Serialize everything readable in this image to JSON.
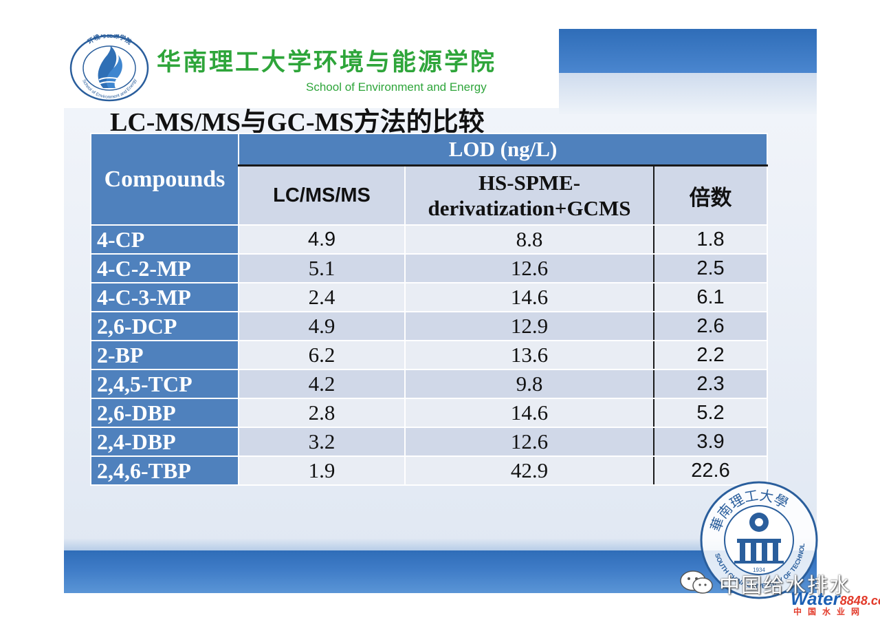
{
  "header": {
    "school_name_cn": "华南理工大学环境与能源学院",
    "school_name_en": "School of Environment and Energy",
    "logo_ring_text": "环境与能源学院",
    "logo_ring_text_en": "School of Environment and Energy"
  },
  "slide": {
    "title": "LC-MS/MS与GC-MS方法的比较"
  },
  "table": {
    "compounds_header": "Compounds",
    "lod_header": "LOD (ng/L)",
    "col_lcmsms": "LC/MS/MS",
    "col_hsspme": "HS-SPME-derivatization+GCMS",
    "col_ratio": "倍数",
    "rows": [
      {
        "compound": "4-CP",
        "lcmsms": "4.9",
        "hsspme": "8.8",
        "ratio": "1.8"
      },
      {
        "compound": "4-C-2-MP",
        "lcmsms": "5.1",
        "hsspme": "12.6",
        "ratio": "2.5"
      },
      {
        "compound": "4-C-3-MP",
        "lcmsms": "2.4",
        "hsspme": "14.6",
        "ratio": "6.1"
      },
      {
        "compound": "2,6-DCP",
        "lcmsms": "4.9",
        "hsspme": "12.9",
        "ratio": "2.6"
      },
      {
        "compound": "2-BP",
        "lcmsms": "6.2",
        "hsspme": "13.6",
        "ratio": "2.2"
      },
      {
        "compound": "2,4,5-TCP",
        "lcmsms": "4.2",
        "hsspme": "9.8",
        "ratio": "2.3"
      },
      {
        "compound": "2,6-DBP",
        "lcmsms": "2.8",
        "hsspme": "14.6",
        "ratio": "5.2"
      },
      {
        "compound": "2,4-DBP",
        "lcmsms": "3.2",
        "hsspme": "12.6",
        "ratio": "3.9"
      },
      {
        "compound": "2,4,6-TBP",
        "lcmsms": "1.9",
        "hsspme": "42.9",
        "ratio": "22.6"
      }
    ]
  },
  "seal": {
    "ring_text_cn": "華南理工大學",
    "ring_text_en": "SOUTH CHINA UNIVERSITY OF TECHNOLOGY",
    "year": "1934"
  },
  "watermark": {
    "text": "中国给水排水",
    "brand_word": "Water",
    "brand_num": "8848",
    "brand_tld": ".com",
    "sub": "中国水业网"
  },
  "colors": {
    "table_header_blue": "#4f81bd",
    "row_light": "#e9edf4",
    "row_dark": "#d0d8e8",
    "school_green": "#2ea53a"
  }
}
